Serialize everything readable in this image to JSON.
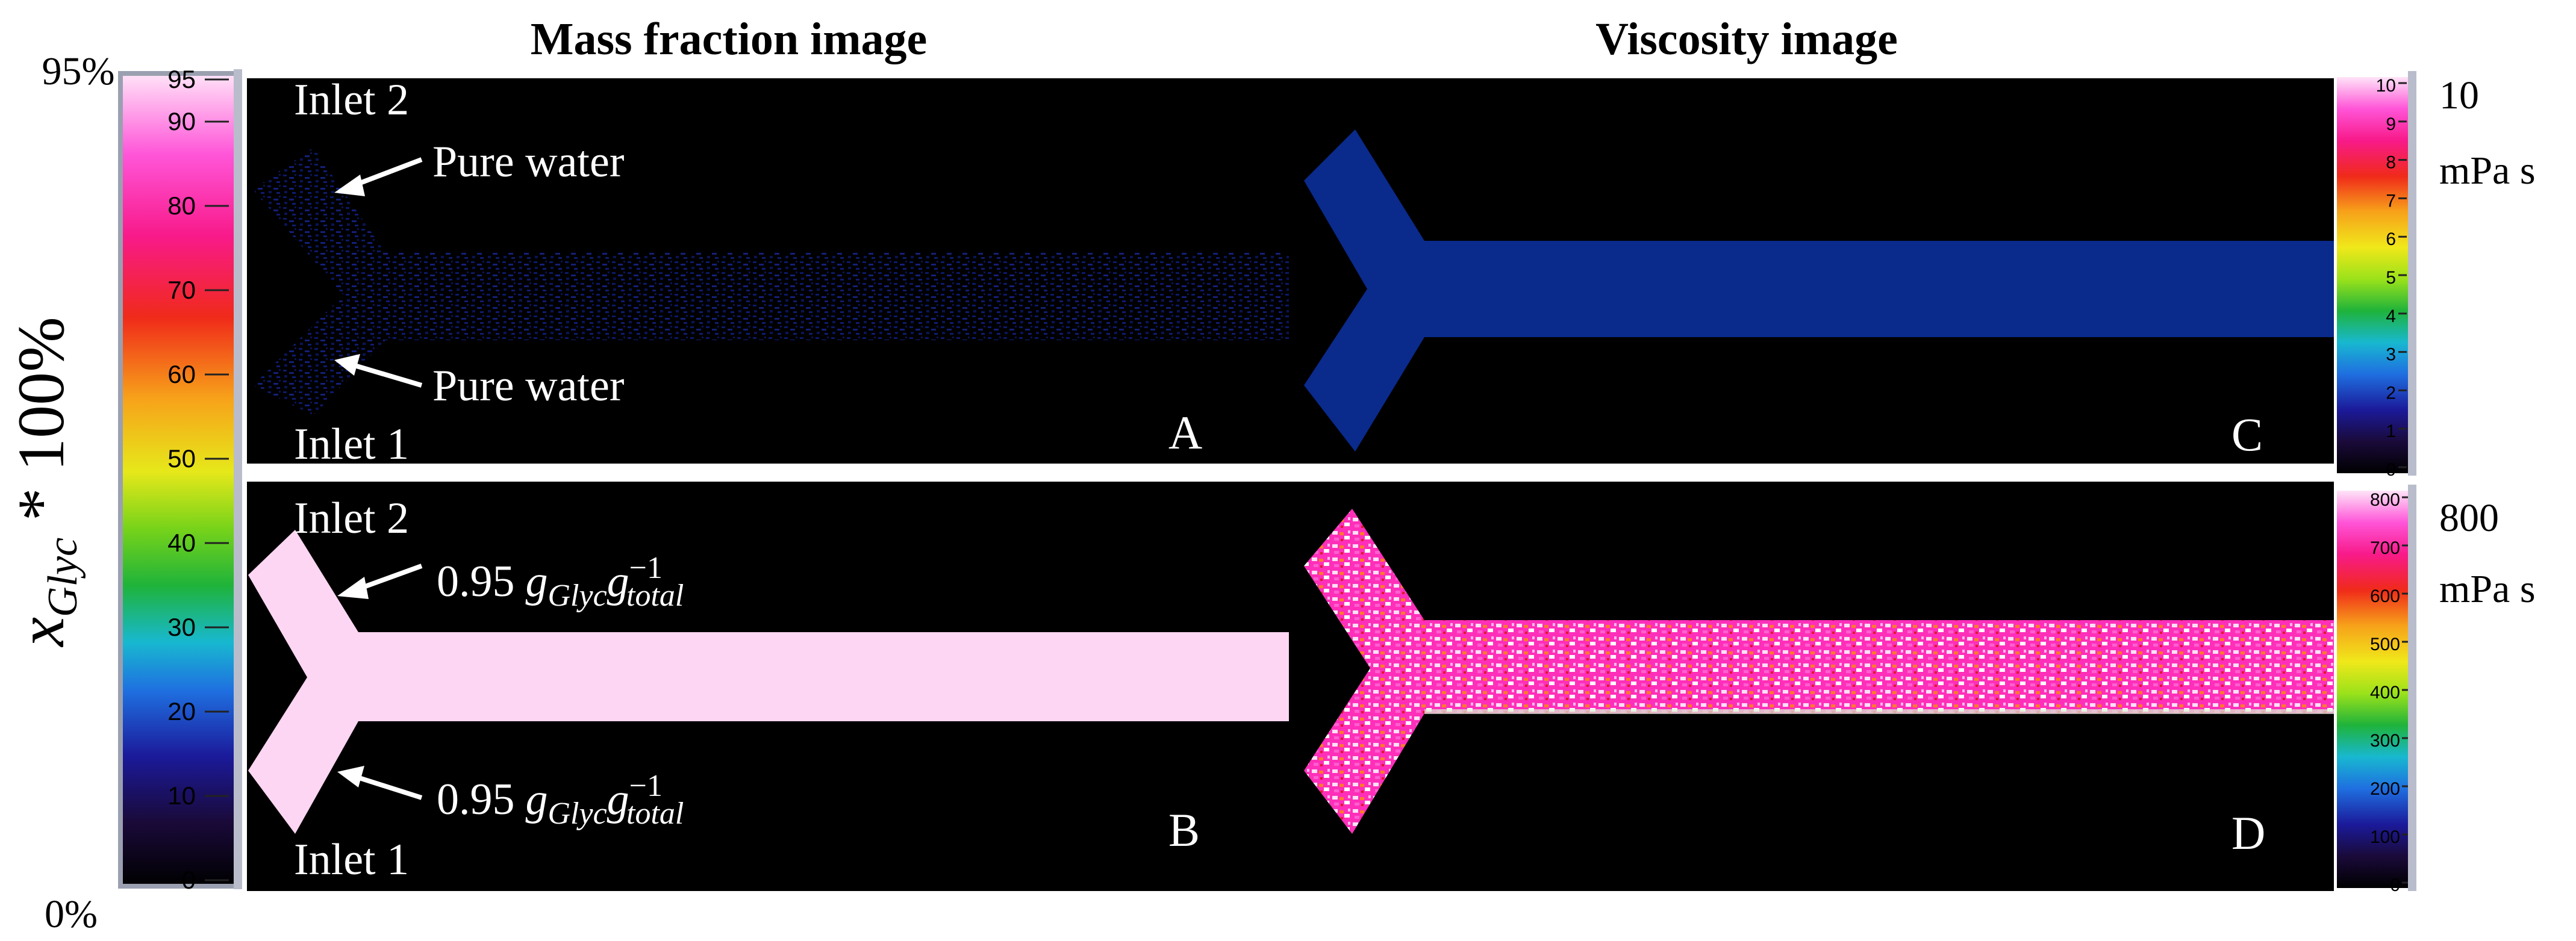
{
  "titles": {
    "mass_fraction": "Mass fraction image",
    "viscosity": "Viscosity image"
  },
  "left_scale": {
    "top_label": "95%",
    "bottom_label": "0%",
    "axis_main": "x",
    "axis_sub": "Glyc",
    "axis_suffix": " * 100%",
    "ticks": [
      "95",
      "90",
      "80",
      "70",
      "60",
      "50",
      "40",
      "30",
      "20",
      "10",
      "0"
    ]
  },
  "right_scale_top": {
    "max_label": "10",
    "unit": "mPa s",
    "ticks": [
      "10",
      "9",
      "8",
      "7",
      "6",
      "5",
      "4",
      "3",
      "2",
      "1",
      "0"
    ]
  },
  "right_scale_bottom": {
    "max_label": "800",
    "unit": "mPa s",
    "ticks": [
      "800",
      "700",
      "600",
      "500",
      "400",
      "300",
      "200",
      "100",
      "0"
    ]
  },
  "panel_a": {
    "letter": "A",
    "inlet_top": "Inlet 2",
    "inlet_bottom": "Inlet 1",
    "label_top": "Pure water",
    "label_bottom": "Pure water"
  },
  "panel_b": {
    "letter": "B",
    "inlet_top": "Inlet 2",
    "inlet_bottom": "Inlet 1",
    "conc_value": "0.95",
    "conc_g1": "g",
    "conc_sub1": "Glyc",
    "conc_g2": "g",
    "conc_sub2": "total",
    "conc_sup": "−1"
  },
  "panel_c": {
    "letter": "C"
  },
  "panel_d": {
    "letter": "D"
  },
  "colors": {
    "background": "#000000",
    "water": "#0a2a8c",
    "glycerol_fraction": "#fcd6f2",
    "viscosity_low": "#0a2a8c",
    "viscosity_high": "#ff2fb9"
  }
}
